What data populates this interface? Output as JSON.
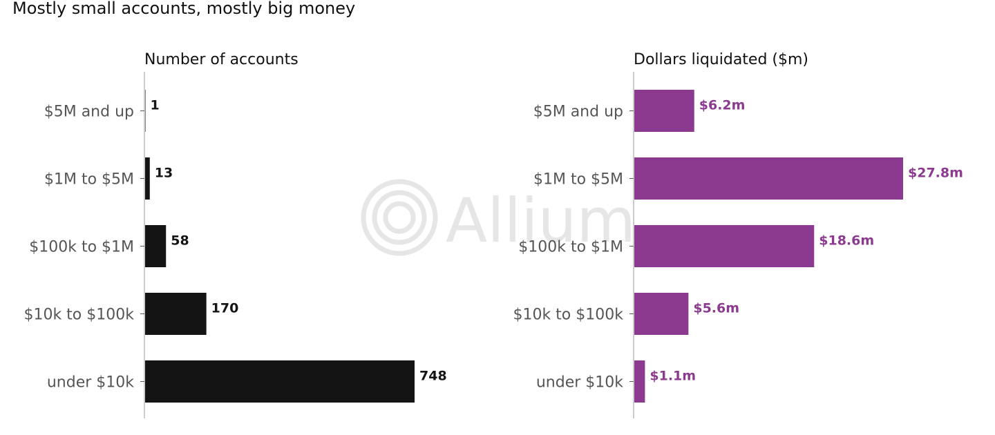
{
  "title": "Mostly small accounts, mostly big money",
  "watermark": {
    "text": "Allium",
    "color": "#e6e6e6",
    "icon": "concentric-circles-logo"
  },
  "chart_data": [
    {
      "type": "bar",
      "orientation": "horizontal",
      "title": "Number of accounts",
      "categories": [
        "$5M and up",
        "$1M to $5M",
        "$100k to $1M",
        "$10k to $100k",
        "under $10k"
      ],
      "values": [
        1,
        13,
        58,
        170,
        748
      ],
      "value_labels": [
        "1",
        "13",
        "58",
        "170",
        "748"
      ],
      "xlim": [
        0,
        748
      ],
      "grid": false,
      "color": "#141414"
    },
    {
      "type": "bar",
      "orientation": "horizontal",
      "title": "Dollars liquidated ($m)",
      "categories": [
        "$5M and up",
        "$1M to $5M",
        "$100k to $1M",
        "$10k to $100k",
        "under $10k"
      ],
      "values": [
        6.2,
        27.8,
        18.6,
        5.6,
        1.1
      ],
      "value_labels": [
        "$6.2m",
        "$27.8m",
        "$18.6m",
        "$5.6m",
        "$1.1m"
      ],
      "xlim": [
        0,
        27.8
      ],
      "grid": false,
      "color": "#8b3a8f"
    }
  ]
}
